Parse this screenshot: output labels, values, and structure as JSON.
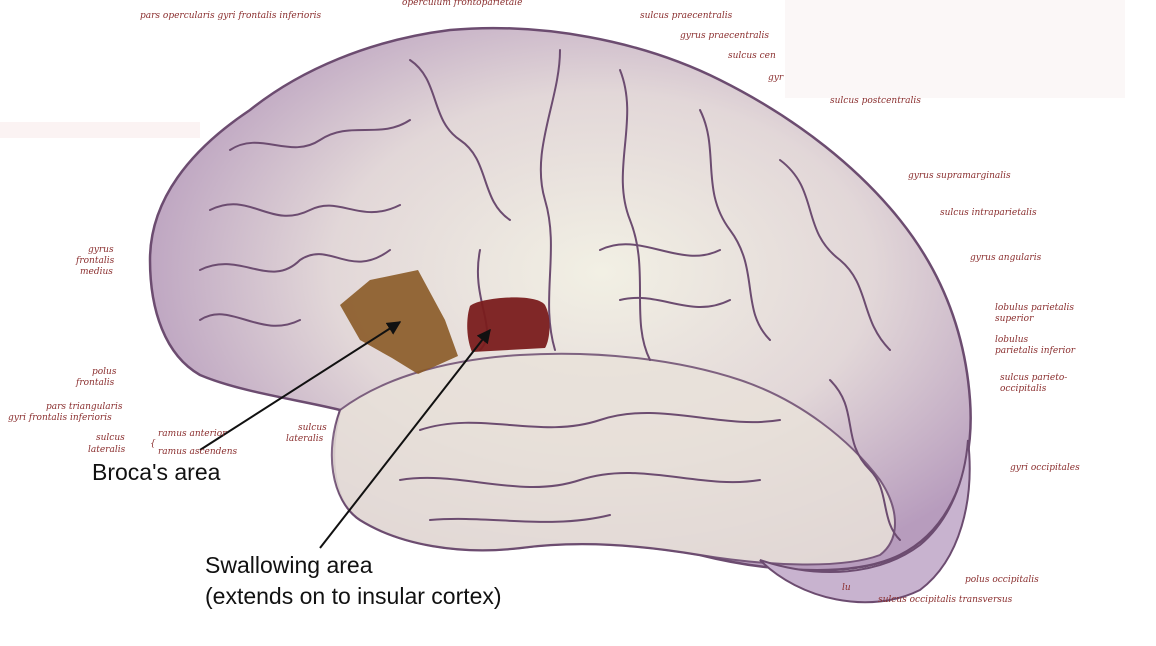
{
  "colors": {
    "background": "#ffffff",
    "brain_fill": "#c8b3cf",
    "brain_highlight": "#f1efe2",
    "sulcus_stroke": "#6c4c70",
    "label_text": "#8a2e2e",
    "broca_region": "#8a5a26",
    "swallowing_region": "#7a1c1c",
    "arrow": "#111111"
  },
  "callouts": {
    "broca": "Broca's area",
    "swallowing_line1": "Swallowing area",
    "swallowing_line2": "(extends on to insular cortex)"
  },
  "labels": {
    "pars_opercularis": "pars opercularis gyri frontalis inferioris",
    "operculum": "operculum frontoparietale",
    "sulcus_praecentralis": "sulcus praecentralis",
    "gyrus_praecentralis": "gyrus praecentralis",
    "sulcus_centralis": "sulcus cen",
    "gyrus_postcentralis": "gyr",
    "sulcus_postcentralis": "sulcus postcentralis",
    "gyrus_supramarginalis": "gyrus supramarginalis",
    "sulcus_intraparietalis": "sulcus intraparietalis",
    "gyrus_angularis": "gyrus angularis",
    "lobulus_superior_1": "lobulus parietalis",
    "lobulus_superior_2": "superior",
    "lobulus_inferior_1": "lobulus",
    "lobulus_inferior_2": "parietalis inferior",
    "sulcus_po_1": "sulcus parieto-",
    "sulcus_po_2": "occipitalis",
    "gyri_occipitales": "gyri occipitales",
    "polus_occipitalis": "polus occipitalis",
    "sulcus_occ_transversus": "sulcus occipitalis transversus",
    "lu": "lu",
    "gfm_1": "gyrus",
    "gfm_2": "frontalis",
    "gfm_3": "medius",
    "polus_frontalis_1": "polus",
    "polus_frontalis_2": "frontalis",
    "pars_triangularis_1": "pars triangularis",
    "pars_triangularis_2": "gyri frontalis inferioris",
    "sulcus_lat_1": "sulcus",
    "sulcus_lat_2": "lateralis",
    "ramus_anterior": "ramus anterior",
    "ramus_ascendens": "ramus ascendens",
    "sulcus_lateralis_1": "sulcus",
    "sulcus_lateralis_2": "lateralis"
  }
}
